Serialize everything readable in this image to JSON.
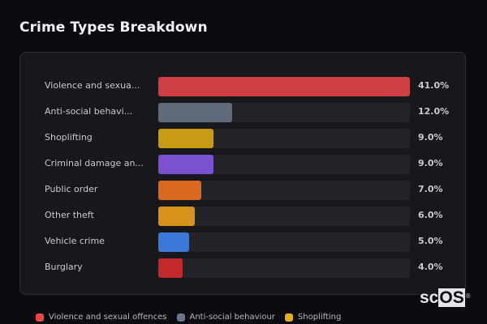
{
  "header": {
    "title": "Crime Types Breakdown"
  },
  "chart_data": {
    "type": "bar",
    "orientation": "horizontal",
    "title": "Crime Types Breakdown",
    "categories": [
      "Violence and sexual offences",
      "Anti-social behaviour",
      "Shoplifting",
      "Criminal damage and arson",
      "Public order",
      "Other theft",
      "Vehicle crime",
      "Burglary"
    ],
    "display_labels": [
      "Violence and sexua...",
      "Anti-social behavi...",
      "Shoplifting",
      "Criminal damage an...",
      "Public order",
      "Other theft",
      "Vehicle crime",
      "Burglary"
    ],
    "values": [
      41.0,
      12.0,
      9.0,
      9.0,
      7.0,
      6.0,
      5.0,
      4.0
    ],
    "value_labels": [
      "41.0%",
      "12.0%",
      "9.0%",
      "9.0%",
      "7.0%",
      "6.0%",
      "5.0%",
      "4.0%"
    ],
    "colors": [
      "#cf4044",
      "#5f6a7a",
      "#c99a14",
      "#7a52d0",
      "#d9691e",
      "#d6921a",
      "#3b78d8",
      "#c2282c"
    ],
    "xlim": [
      0,
      41
    ],
    "legend_position": "bottom",
    "legend_visible": [
      "Violence and sexual offences",
      "Anti-social behaviour",
      "Shoplifting"
    ]
  },
  "legend": [
    {
      "label": "Violence and sexual offences",
      "color": "#e8484c"
    },
    {
      "label": "Anti-social behaviour",
      "color": "#6b7689"
    },
    {
      "label": "Shoplifting",
      "color": "#e2b11c"
    }
  ],
  "watermark": {
    "prefix": "sc",
    "highlight": "OS",
    "mark": "®"
  }
}
